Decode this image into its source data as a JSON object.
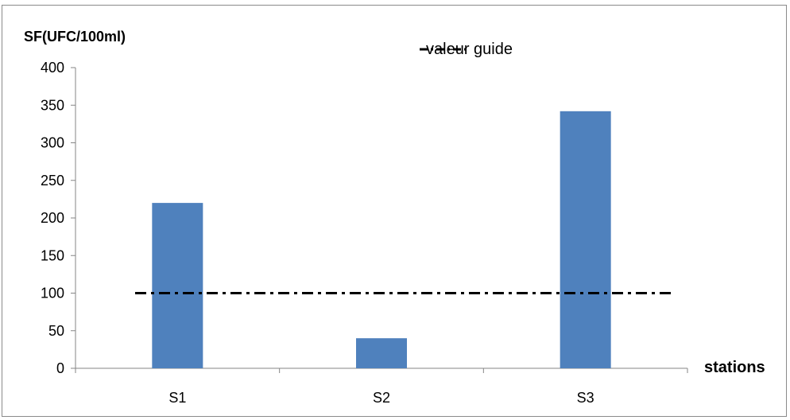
{
  "chart_data": {
    "type": "bar",
    "ylabel": "SF(UFC/100ml)",
    "xlabel": "stations",
    "categories": [
      "S1",
      "S2",
      "S3"
    ],
    "series": [
      {
        "values": [
          220,
          40,
          342
        ],
        "color": "#4f81bd"
      }
    ],
    "reference_line": {
      "name": "valeur guide",
      "value": 100,
      "style": "dash-dot",
      "color": "#000000"
    },
    "ylim": [
      0,
      400
    ],
    "yticks": [
      0,
      50,
      100,
      150,
      200,
      250,
      300,
      350,
      400
    ],
    "grid": false,
    "legend": {
      "position": "top-center",
      "entries": [
        "valeur guide"
      ]
    }
  }
}
